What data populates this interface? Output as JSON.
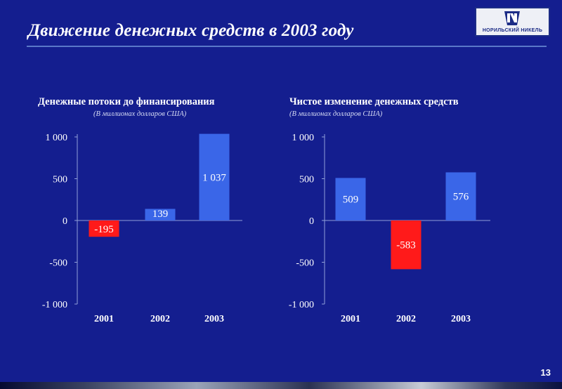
{
  "slide": {
    "title": "Движение денежных средств в 2003 году",
    "page_number": "13",
    "logo_text": "НОРИЛЬСКИЙ НИКЕЛЬ",
    "logo_icon": "nornickel-logo-icon"
  },
  "colors": {
    "background": "#141e8f",
    "positive_bar": "#3a66e8",
    "negative_bar": "#ff1a1a",
    "axis": "#8f9fd8",
    "text": "#ffffff"
  },
  "chart_data": [
    {
      "type": "bar",
      "title": "Денежные потоки до финансирования",
      "subtitle": "(В миллионах долларов США)",
      "categories": [
        "2001",
        "2002",
        "2003"
      ],
      "values": [
        -195,
        139,
        1037
      ],
      "value_labels": [
        "-195",
        "139",
        "1 037"
      ],
      "ylim": [
        -1000,
        1000
      ],
      "yticks": [
        1000,
        500,
        0,
        -500,
        -1000
      ],
      "ytick_labels": [
        "1 000",
        "500",
        "0",
        "-500",
        "-1 000"
      ],
      "grid": false,
      "legend": "none"
    },
    {
      "type": "bar",
      "title": "Чистое изменение денежных средств",
      "subtitle": "(В миллионах долларов США)",
      "categories": [
        "2001",
        "2002",
        "2003"
      ],
      "values": [
        509,
        -583,
        576
      ],
      "value_labels": [
        "509",
        "-583",
        "576"
      ],
      "ylim": [
        -1000,
        1000
      ],
      "yticks": [
        1000,
        500,
        0,
        -500,
        -1000
      ],
      "ytick_labels": [
        "1 000",
        "500",
        "0",
        "-500",
        "-1 000"
      ],
      "grid": false,
      "legend": "none"
    }
  ]
}
